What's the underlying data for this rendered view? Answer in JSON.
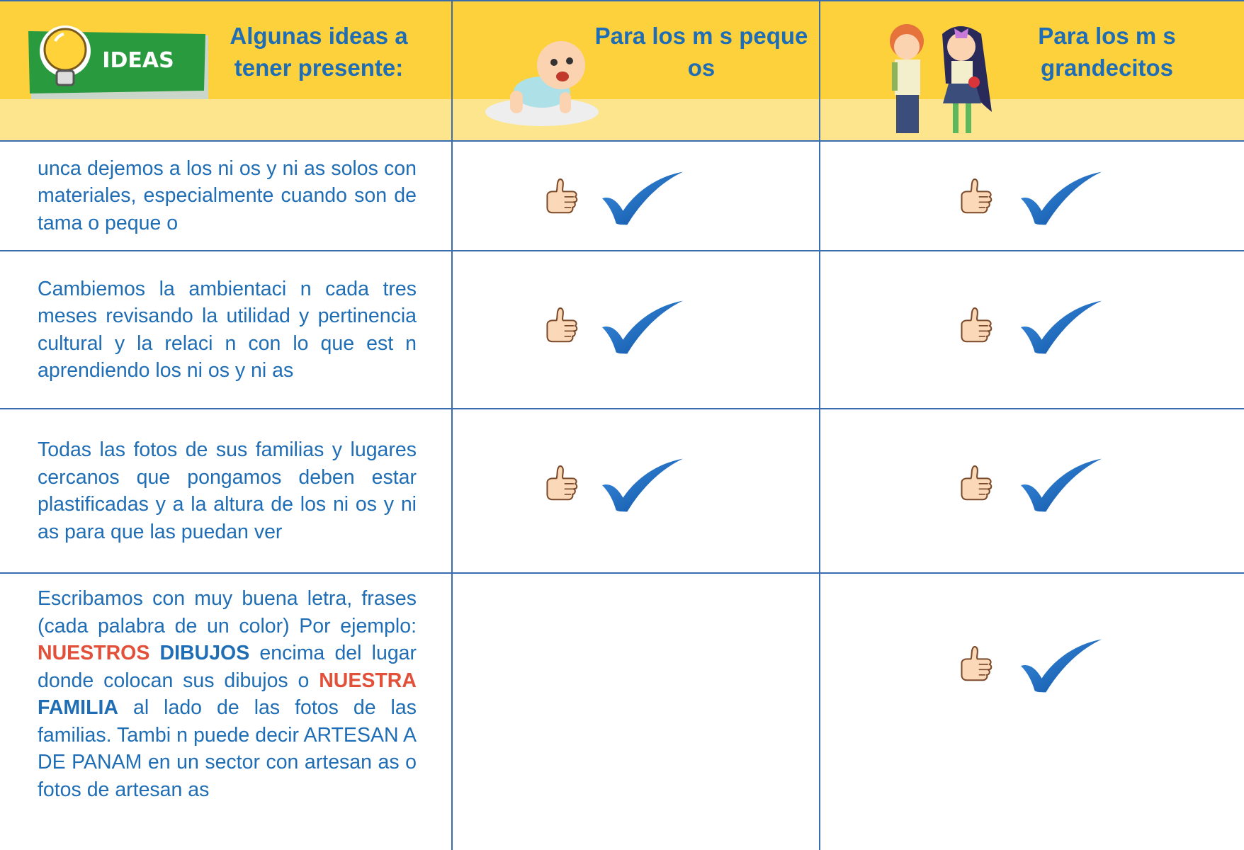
{
  "header": {
    "badge": "IDEAS",
    "col1": "Algunas ideas a tener presente:",
    "col2": "Para los m s peque os",
    "col3": "Para los m s grandecitos"
  },
  "rows": [
    {
      "text": [
        "unca dejemos a los ni os y ni as solos con materiales, especialmente cuando son de tama  o peque  o"
      ]
    },
    {
      "text": [
        "Cambiemos la ambientaci n cada tres meses revisando la utilidad y pertinencia cultural y la relaci n con lo que est  n aprendiendo los ni os y ni as"
      ]
    },
    {
      "text": [
        "Todas las fotos de sus familias y lugares cercanos que pongamos deben estar plastificadas y a la altura de los ni os y ni as para que las puedan ver"
      ]
    },
    {
      "text": [
        "Escribamos con muy buena letra, frases (cada palabra de un color) Por ejemplo:",
        "NUESTROS",
        "DIBUJOS",
        "encima del lugar donde colocan sus dibujos o",
        "NUESTRA",
        "FAMILIA",
        "al lado de las fotos de las familias. Tambi n puede decir ARTESAN A DE PANAM   en un sector con artesan as o fotos de artesan as"
      ]
    }
  ]
}
